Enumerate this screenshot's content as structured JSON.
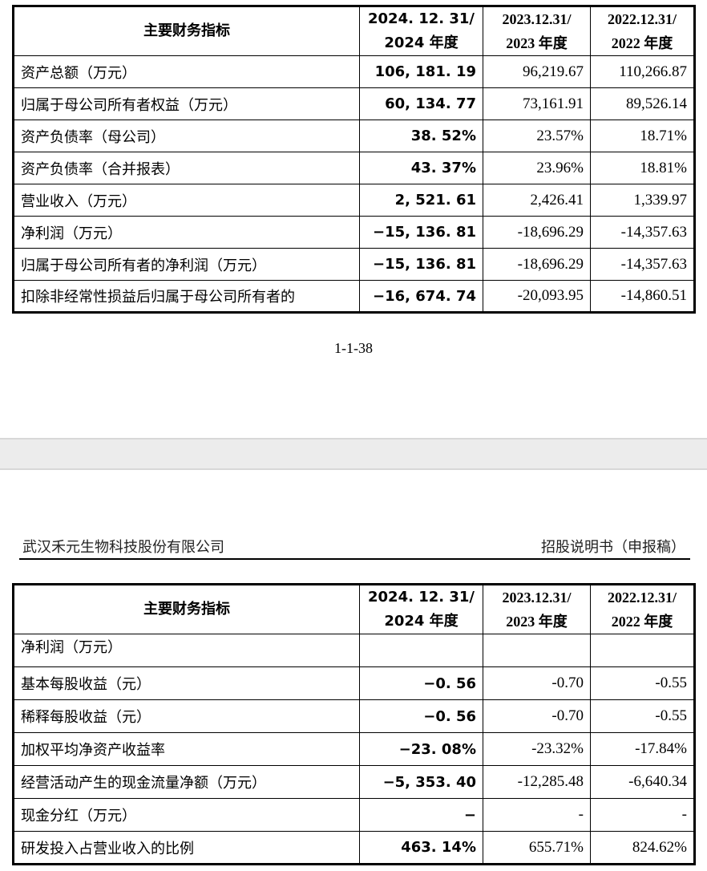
{
  "header_cols": [
    "主要财务指标",
    "2024. 12. 31/\n2024 年度",
    "2023.12.31/\n2023 年度",
    "2022.12.31/\n2022 年度"
  ],
  "table1": [
    [
      "资产总额（万元）",
      "106, 181. 19",
      "96,219.67",
      "110,266.87"
    ],
    [
      "归属于母公司所有者权益（万元）",
      "60, 134. 77",
      "73,161.91",
      "89,526.14"
    ],
    [
      "资产负债率（母公司）",
      "38. 52%",
      "23.57%",
      "18.71%"
    ],
    [
      "资产负债率（合并报表）",
      "43. 37%",
      "23.96%",
      "18.81%"
    ],
    [
      "营业收入（万元）",
      "2, 521. 61",
      "2,426.41",
      "1,339.97"
    ],
    [
      "净利润（万元）",
      "−15, 136. 81",
      "-18,696.29",
      "-14,357.63"
    ],
    [
      "归属于母公司所有者的净利润（万元）",
      "−15, 136. 81",
      "-18,696.29",
      "-14,357.63"
    ],
    [
      "扣除非经常性损益后归属于母公司所有者的",
      "−16, 674. 74",
      "-20,093.95",
      "-14,860.51"
    ]
  ],
  "page_number": "1-1-38",
  "page_header": {
    "company": "武汉禾元生物科技股份有限公司",
    "doc": "招股说明书（申报稿）"
  },
  "table2": [
    [
      "净利润（万元）",
      "",
      "",
      ""
    ],
    [
      "基本每股收益（元）",
      "−0. 56",
      "-0.70",
      "-0.55"
    ],
    [
      "稀释每股收益（元）",
      "−0. 56",
      "-0.70",
      "-0.55"
    ],
    [
      "加权平均净资产收益率",
      "−23. 08%",
      "-23.32%",
      "-17.84%"
    ],
    [
      "经营活动产生的现金流量净额（万元）",
      "−5, 353. 40",
      "-12,285.48",
      "-6,640.34"
    ],
    [
      "现金分红（万元）",
      "−",
      "-",
      "-"
    ],
    [
      "研发投入占营业收入的比例",
      "463. 14%",
      "655.71%",
      "824.62%"
    ]
  ]
}
